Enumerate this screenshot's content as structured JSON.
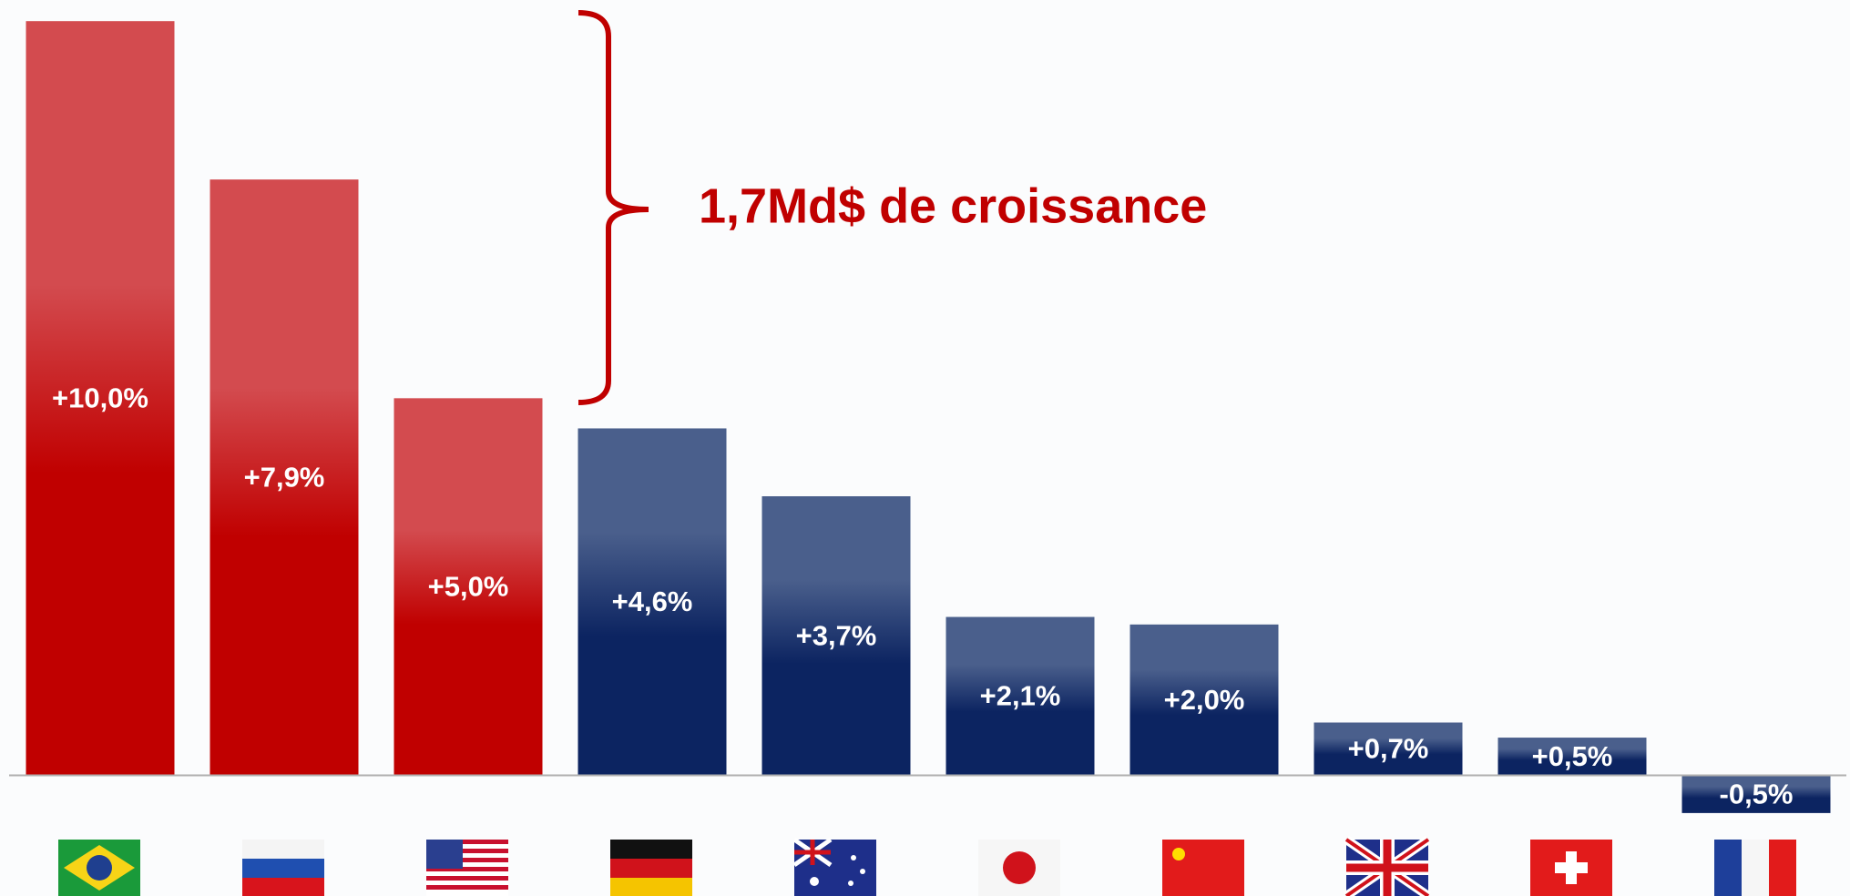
{
  "chart_data": {
    "type": "bar",
    "annotation": "1,7Md$ de croissance",
    "categories": [
      null,
      null,
      null,
      null,
      null,
      null,
      null,
      null,
      null,
      null
    ],
    "values": [
      10.0,
      7.9,
      5.0,
      4.6,
      3.7,
      2.1,
      2.0,
      0.7,
      0.5,
      -0.5
    ],
    "value_labels": [
      "+10,0%",
      "+7,9%",
      "+5,0%",
      "+4,6%",
      "+3,7%",
      "+2,1%",
      "+2,0%",
      "+0,7%",
      "+0,5%",
      "-0,5%"
    ],
    "colors": [
      "#c00000",
      "#c00000",
      "#c00000",
      "#0c2461",
      "#0c2461",
      "#0c2461",
      "#0c2461",
      "#0c2461",
      "#0c2461",
      "#0c2461"
    ],
    "ylim": [
      -1.6,
      10.28
    ]
  }
}
